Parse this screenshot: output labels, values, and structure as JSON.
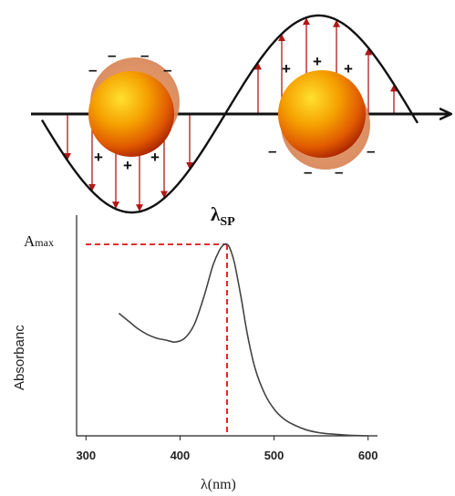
{
  "diagram": {
    "plus_sign": "+",
    "minus_sign": "–"
  },
  "chart_data": {
    "type": "line",
    "title": "λSP",
    "title_main": "λ",
    "title_sub": "SP",
    "xlabel": "λ(nm)",
    "ylabel": "Absorbanc",
    "amax_label_main": "A",
    "amax_label_sub": "max",
    "xlim": [
      290,
      610
    ],
    "xticks": [
      300,
      400,
      500,
      600
    ],
    "xtick_labels": [
      "300",
      "400",
      "500",
      "600"
    ],
    "peak_x": 450,
    "ylim": [
      0,
      1
    ],
    "series": [
      {
        "x": [
          335,
          345,
          355,
          365,
          375,
          385,
          395,
          405,
          415,
          425,
          435,
          442,
          447,
          450,
          453,
          458,
          465,
          472,
          480,
          490,
          500,
          510,
          520,
          535,
          550,
          565,
          580,
          600
        ],
        "y": [
          0.64,
          0.6,
          0.56,
          0.53,
          0.51,
          0.5,
          0.49,
          0.51,
          0.58,
          0.72,
          0.89,
          0.97,
          1.0,
          1.0,
          0.98,
          0.9,
          0.72,
          0.52,
          0.35,
          0.22,
          0.14,
          0.09,
          0.06,
          0.03,
          0.015,
          0.008,
          0.003,
          0.0
        ]
      }
    ],
    "grid": false,
    "legend": "none"
  }
}
